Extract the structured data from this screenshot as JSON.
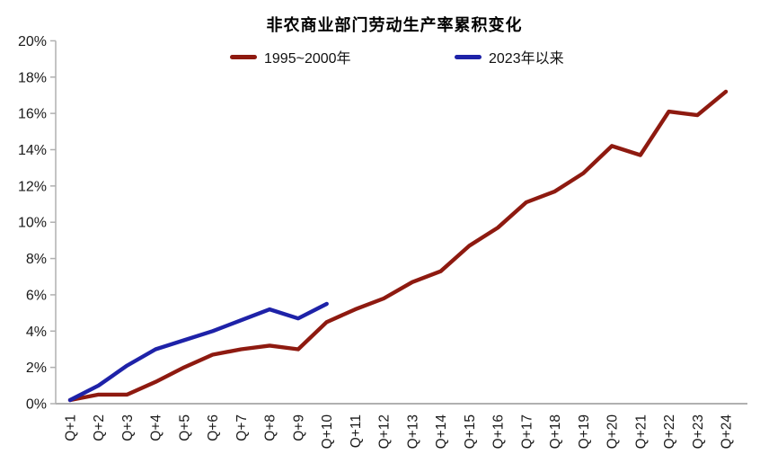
{
  "page": {
    "background": "#ffffff"
  },
  "chart_data": {
    "type": "line",
    "title": "非农商业部门劳动生产率累积变化",
    "categories": [
      "Q+1",
      "Q+2",
      "Q+3",
      "Q+4",
      "Q+5",
      "Q+6",
      "Q+7",
      "Q+8",
      "Q+9",
      "Q+10",
      "Q+11",
      "Q+12",
      "Q+13",
      "Q+14",
      "Q+15",
      "Q+16",
      "Q+17",
      "Q+18",
      "Q+19",
      "Q+20",
      "Q+21",
      "Q+22",
      "Q+23",
      "Q+24"
    ],
    "ytick_labels": [
      "0%",
      "2%",
      "4%",
      "6%",
      "8%",
      "10%",
      "12%",
      "14%",
      "16%",
      "18%",
      "20%"
    ],
    "ylim": [
      0,
      20
    ],
    "ytick_step": 2,
    "grid": false,
    "legend_position": "top",
    "axis_color": "#b0b0b0",
    "text_color": "#1a1a1a",
    "series": [
      {
        "name": "1995~2000年",
        "color": "#8E1A10",
        "values": [
          0.2,
          0.5,
          0.5,
          1.2,
          2.0,
          2.7,
          3.0,
          3.2,
          3.0,
          4.5,
          5.2,
          5.8,
          6.7,
          7.3,
          8.7,
          9.7,
          11.1,
          11.7,
          12.7,
          14.2,
          13.7,
          16.1,
          15.9,
          17.2
        ]
      },
      {
        "name": "2023年以来",
        "color": "#1E22A8",
        "values": [
          0.2,
          1.0,
          2.1,
          3.0,
          3.5,
          4.0,
          4.6,
          5.2,
          4.7,
          5.5
        ]
      }
    ]
  }
}
